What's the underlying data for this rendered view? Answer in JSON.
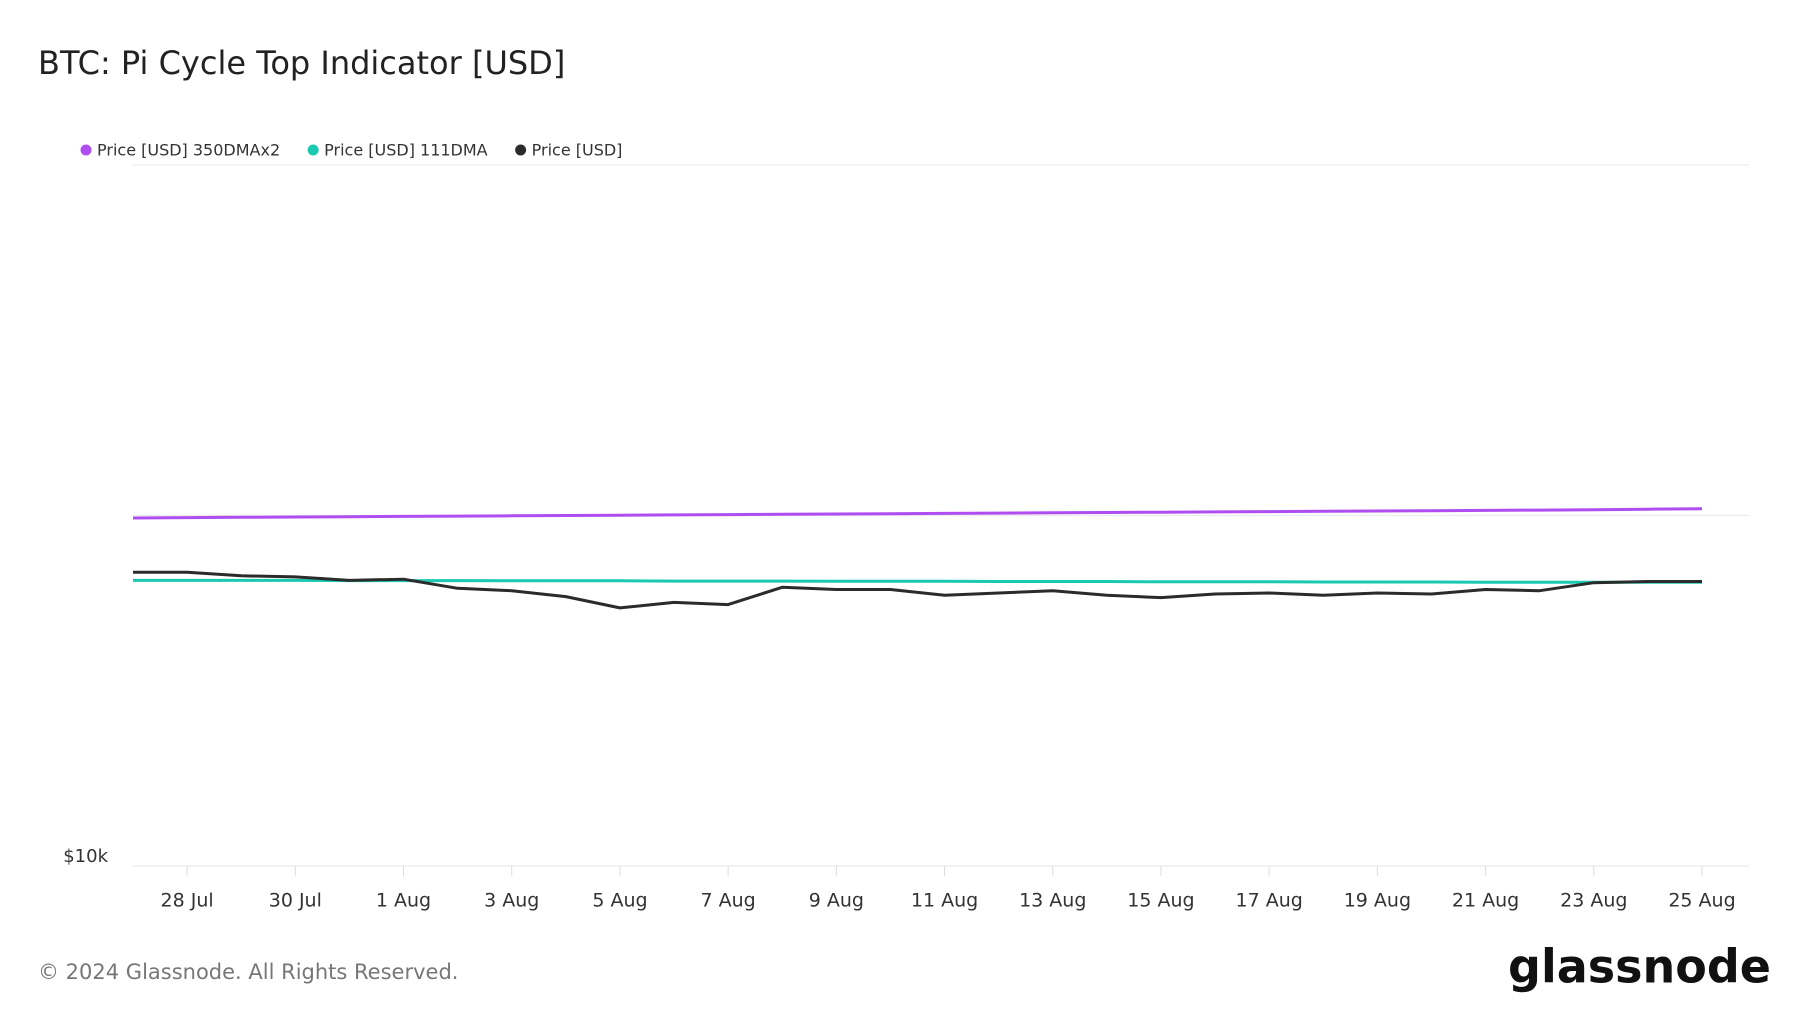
{
  "chart_data": {
    "type": "line",
    "title": "BTC: Pi Cycle Top Indicator [USD]",
    "x": [
      null,
      "28 Jul",
      null,
      "30 Jul",
      null,
      "1 Aug",
      null,
      "3 Aug",
      null,
      "5 Aug",
      null,
      "7 Aug",
      null,
      "9 Aug",
      null,
      "11 Aug",
      null,
      "13 Aug",
      null,
      "15 Aug",
      null,
      "17 Aug",
      null,
      "19 Aug",
      null,
      "21 Aug",
      null,
      "23 Aug",
      null,
      "25 Aug"
    ],
    "series": [
      {
        "name": "Price [USD] 350DMAx2",
        "color": "#b04df0",
        "values": [
          98400,
          98600,
          98800,
          99000,
          99200,
          99400,
          99600,
          99800,
          100000,
          100200,
          100400,
          100600,
          100800,
          101000,
          101200,
          101400,
          101600,
          101800,
          102000,
          102200,
          102400,
          102600,
          102800,
          103000,
          103200,
          103400,
          103600,
          103900,
          104200,
          104600
        ]
      },
      {
        "name": "Price [USD] 111DMA",
        "color": "#1bc8b0",
        "values": [
          65300,
          65300,
          65300,
          65300,
          65200,
          65200,
          65200,
          65100,
          65100,
          65100,
          65000,
          65000,
          65000,
          64900,
          64900,
          64900,
          64800,
          64800,
          64800,
          64700,
          64700,
          64700,
          64600,
          64600,
          64600,
          64500,
          64500,
          64500,
          64500,
          64500
        ]
      },
      {
        "name": "Price [USD]",
        "color": "#2b2b2b",
        "values": [
          68900,
          68900,
          67300,
          66800,
          65300,
          65800,
          62000,
          61000,
          58700,
          54500,
          56500,
          55700,
          62400,
          61500,
          61500,
          59200,
          60100,
          61000,
          59200,
          58300,
          59700,
          60100,
          59200,
          60100,
          59700,
          61500,
          61000,
          64300,
          64800,
          64800
        ]
      }
    ],
    "log_scale": true,
    "ylim": [
      10000,
      1000000
    ],
    "yticks": [
      {
        "value": 10000,
        "label": "$10k"
      },
      {
        "value": 100000,
        "label": null
      },
      {
        "value": 1000000,
        "label": null
      }
    ],
    "grid": true,
    "legend": "top-left"
  },
  "footer": {
    "copyright": "© 2024 Glassnode. All Rights Reserved.",
    "logo": "glassnode"
  }
}
